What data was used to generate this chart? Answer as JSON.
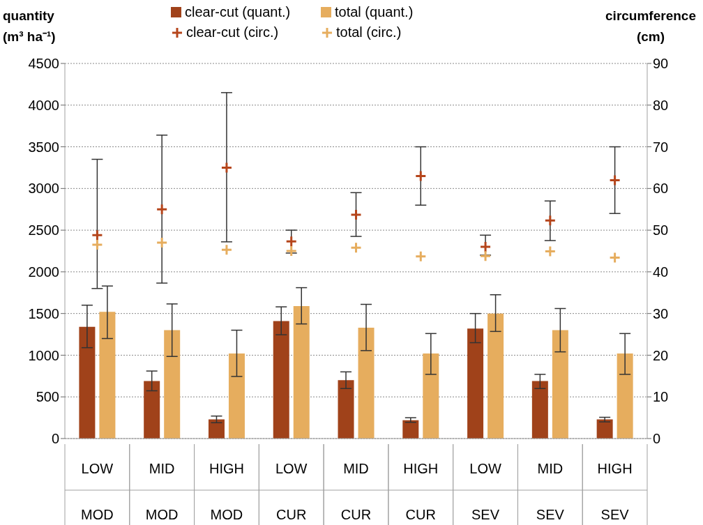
{
  "chart_data": {
    "type": "bar",
    "ylabel": "quantity (m³ ha⁻¹)",
    "y2label": "circumference (cm)",
    "categories": [
      "LOW MOD",
      "MID MOD",
      "HIGH MOD",
      "LOW CUR",
      "MID CUR",
      "HIGH CUR",
      "LOW SEV",
      "MID SEV",
      "HIGH SEV"
    ],
    "series": [
      {
        "name": "clear-cut (quant.)",
        "color": "#a0421a",
        "values": [
          1340,
          690,
          230,
          1410,
          700,
          220,
          1320,
          690,
          230
        ],
        "errors": [
          [
            1090,
            1600
          ],
          [
            573,
            810
          ],
          [
            190,
            270
          ],
          [
            1245,
            1580
          ],
          [
            600,
            800
          ],
          [
            195,
            250
          ],
          [
            1150,
            1500
          ],
          [
            600,
            770
          ],
          [
            200,
            255
          ]
        ]
      },
      {
        "name": "total (quant.)",
        "color": "#e6ad5e",
        "values": [
          1520,
          1300,
          1020,
          1590,
          1330,
          1020,
          1500,
          1300,
          1020
        ],
        "errors": [
          [
            1200,
            1830
          ],
          [
            985,
            1615
          ],
          [
            745,
            1300
          ],
          [
            1375,
            1810
          ],
          [
            1055,
            1610
          ],
          [
            770,
            1260
          ],
          [
            1285,
            1725
          ],
          [
            1040,
            1560
          ],
          [
            770,
            1260
          ]
        ]
      },
      {
        "name": "clear-cut (circ.)",
        "type": "scatter",
        "axis": "y2",
        "marker": "cross",
        "color": "#b5451b",
        "values": [
          48.8,
          55,
          65,
          47.3,
          53.7,
          63,
          46,
          52.3,
          62
        ],
        "errors": [
          [
            36,
            67
          ],
          [
            37.3,
            72.8
          ],
          [
            47.2,
            83
          ],
          [
            44.5,
            50
          ],
          [
            48.5,
            59
          ],
          [
            56,
            70
          ],
          [
            44,
            48.8
          ],
          [
            47.5,
            57
          ],
          [
            54,
            70
          ]
        ]
      },
      {
        "name": "total (circ.)",
        "type": "scatter",
        "axis": "y2",
        "marker": "cross",
        "color": "#e6ad5e",
        "values": [
          46.5,
          47,
          45.3,
          45,
          45.8,
          43.7,
          43.8,
          44.9,
          43.4
        ]
      }
    ],
    "ylim": [
      0,
      4500
    ],
    "yticks": [
      0,
      500,
      1000,
      1500,
      2000,
      2500,
      3000,
      3500,
      4000,
      4500
    ],
    "y2lim": [
      0,
      90
    ],
    "y2ticks": [
      0,
      10,
      20,
      30,
      40,
      50,
      60,
      70,
      80,
      90
    ],
    "grid": "y",
    "legend": "top"
  }
}
